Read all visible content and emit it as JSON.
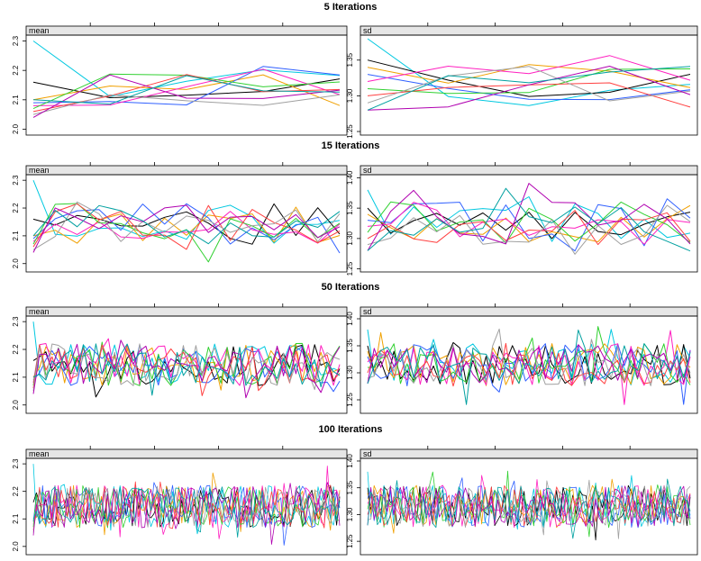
{
  "chart_data": [
    {
      "type": "line",
      "title": "5 Iterations",
      "n_iterations": 5,
      "panels": [
        {
          "label": "mean",
          "ylim": [
            1.98,
            2.32
          ],
          "yticks": [
            "2.0",
            "2.1",
            "2.2",
            "2.3"
          ],
          "ytick_values": [
            2.0,
            2.1,
            2.2,
            2.3
          ],
          "start": [
            2.3,
            2.16,
            2.1,
            2.09,
            2.08,
            2.07,
            2.06,
            2.05,
            2.04,
            2.1
          ],
          "seed": 11
        },
        {
          "label": "sd",
          "ylim": [
            1.245,
            1.385
          ],
          "yticks": [
            "1.25",
            "1.30",
            "1.35"
          ],
          "ytick_values": [
            1.25,
            1.3,
            1.35
          ],
          "start": [
            1.38,
            1.35,
            1.34,
            1.33,
            1.32,
            1.31,
            1.3,
            1.29,
            1.28,
            1.28
          ],
          "seed": 12
        }
      ]
    },
    {
      "type": "line",
      "title": "15 Iterations",
      "n_iterations": 15,
      "panels": [
        {
          "label": "mean",
          "ylim": [
            1.97,
            2.32
          ],
          "yticks": [
            "2.0",
            "2.1",
            "2.2",
            "2.3"
          ],
          "ytick_values": [
            2.0,
            2.1,
            2.2,
            2.3
          ],
          "start": [
            2.3,
            2.16,
            2.1,
            2.09,
            2.08,
            2.07,
            2.06,
            2.05,
            2.04,
            2.1
          ],
          "seed": 21
        },
        {
          "label": "sd",
          "ylim": [
            1.245,
            1.405
          ],
          "yticks": [
            "1.25",
            "1.30",
            "1.35",
            "1.40"
          ],
          "ytick_values": [
            1.25,
            1.3,
            1.35,
            1.4
          ],
          "start": [
            1.38,
            1.35,
            1.34,
            1.33,
            1.32,
            1.31,
            1.3,
            1.29,
            1.28,
            1.28
          ],
          "seed": 22
        }
      ]
    },
    {
      "type": "line",
      "title": "50 Iterations",
      "n_iterations": 50,
      "panels": [
        {
          "label": "mean",
          "ylim": [
            1.97,
            2.32
          ],
          "yticks": [
            "2.0",
            "2.1",
            "2.2",
            "2.3"
          ],
          "ytick_values": [
            2.0,
            2.1,
            2.2,
            2.3
          ],
          "start": [
            2.3,
            2.16,
            2.1,
            2.09,
            2.08,
            2.07,
            2.06,
            2.05,
            2.04,
            2.1
          ],
          "seed": 31
        },
        {
          "label": "sd",
          "ylim": [
            1.225,
            1.405
          ],
          "yticks": [
            "1.25",
            "1.30",
            "1.35",
            "1.40"
          ],
          "ytick_values": [
            1.25,
            1.3,
            1.35,
            1.4
          ],
          "start": [
            1.38,
            1.35,
            1.34,
            1.33,
            1.32,
            1.31,
            1.3,
            1.29,
            1.28,
            1.28
          ],
          "seed": 32
        }
      ]
    },
    {
      "type": "line",
      "title": "100 Iterations",
      "n_iterations": 100,
      "panels": [
        {
          "label": "mean",
          "ylim": [
            1.97,
            2.32
          ],
          "yticks": [
            "2.0",
            "2.1",
            "2.2",
            "2.3"
          ],
          "ytick_values": [
            2.0,
            2.1,
            2.2,
            2.3
          ],
          "start": [
            2.3,
            2.16,
            2.1,
            2.09,
            2.08,
            2.07,
            2.06,
            2.05,
            2.04,
            2.1
          ],
          "seed": 41
        },
        {
          "label": "sd",
          "ylim": [
            1.225,
            1.405
          ],
          "yticks": [
            "1.25",
            "1.30",
            "1.35",
            "1.40"
          ],
          "ytick_values": [
            1.25,
            1.3,
            1.35,
            1.4
          ],
          "start": [
            1.38,
            1.35,
            1.34,
            1.33,
            1.32,
            1.31,
            1.3,
            1.29,
            1.28,
            1.28
          ],
          "seed": 42
        }
      ]
    }
  ],
  "series_colors": [
    "#00c8e0",
    "#000000",
    "#f0a000",
    "#3060ff",
    "#ff20c0",
    "#30d030",
    "#ff4040",
    "#a0a0a0",
    "#b000b0",
    "#00a0a0"
  ]
}
